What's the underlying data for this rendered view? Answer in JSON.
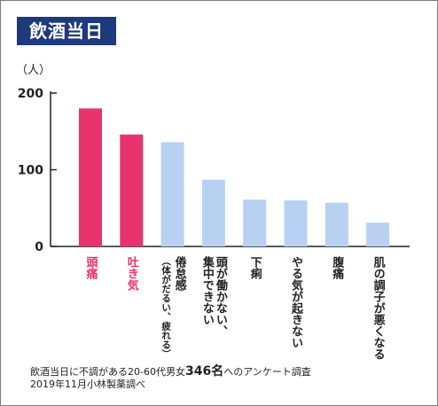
{
  "title": "飲酒当日",
  "chart_data": {
    "type": "bar",
    "y_unit": "（人）",
    "ylim": [
      0,
      200
    ],
    "y_ticks": [
      "0",
      "100",
      "200"
    ],
    "grid": false,
    "categories": [
      {
        "label": "頭痛",
        "sub": ""
      },
      {
        "label": "吐き気",
        "sub": ""
      },
      {
        "label": "倦怠感",
        "sub": "（体がだるい、疲れる）"
      },
      {
        "label": "頭が働かない、集中できない",
        "sub": ""
      },
      {
        "label": "下痢",
        "sub": ""
      },
      {
        "label": "やる気が起きない",
        "sub": ""
      },
      {
        "label": "腹痛",
        "sub": ""
      },
      {
        "label": "肌の調子が悪くなる",
        "sub": ""
      }
    ],
    "values": [
      180,
      146,
      136,
      87,
      61,
      60,
      57,
      31
    ],
    "highlight_count": 2,
    "colors": {
      "highlight": "#e8336d",
      "normal": "#b8d1f3",
      "axis": "#222222"
    }
  },
  "footnote": {
    "line1_pre": "飲酒当日に不調がある20-60代男女",
    "line1_num": "346名",
    "line1_post": "へのアンケート調査",
    "line2": "2019年11月小林製薬調べ"
  }
}
